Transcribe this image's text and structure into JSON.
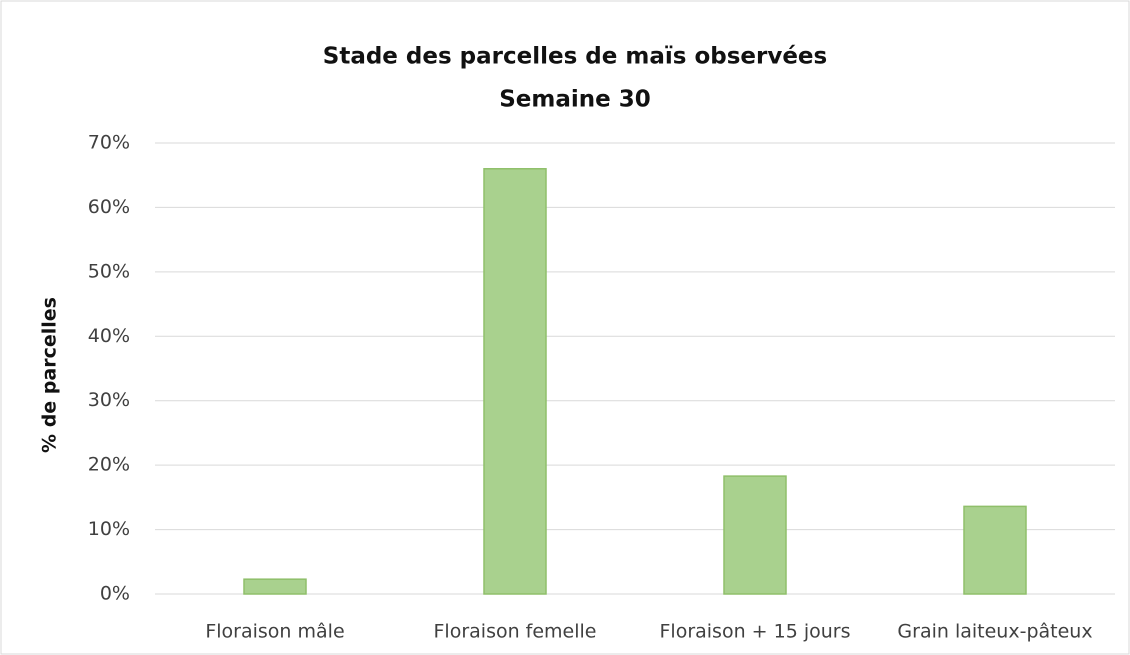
{
  "chart_data": {
    "type": "bar",
    "title": "Stade des parcelles de maïs observées",
    "subtitle": "Semaine 30",
    "y_label": "% de parcelles",
    "categories": [
      "Floraison mâle",
      "Floraison femelle",
      "Floraison + 15 jours",
      "Grain laiteux-pâteux"
    ],
    "values": [
      2.3,
      66,
      18.3,
      13.6
    ],
    "color": "#a9d18e",
    "ylim": [
      0,
      70
    ],
    "yticks": [
      {
        "value": 0,
        "label": "0%"
      },
      {
        "value": 10,
        "label": "10%"
      },
      {
        "value": 20,
        "label": "20%"
      },
      {
        "value": 30,
        "label": "30%"
      },
      {
        "value": 40,
        "label": "40%"
      },
      {
        "value": 50,
        "label": "50%"
      },
      {
        "value": 60,
        "label": "60%"
      },
      {
        "value": 70,
        "label": "70%"
      }
    ],
    "grid": true
  }
}
